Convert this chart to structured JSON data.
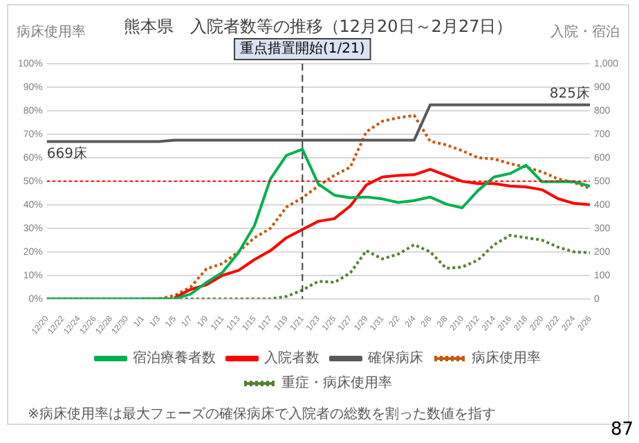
{
  "chart_data": {
    "type": "line",
    "title": "熊本県　入院者数等の推移（12月20日～2月27日）",
    "ylabel": "病床使用率",
    "y2label": "入院・宿泊",
    "categories": [
      "12/20",
      "12/22",
      "12/24",
      "12/26",
      "12/28",
      "12/30",
      "1/1",
      "1/3",
      "1/5",
      "1/7",
      "1/9",
      "1/11",
      "1/13",
      "1/15",
      "1/17",
      "1/19",
      "1/21",
      "1/23",
      "1/25",
      "1/27",
      "1/29",
      "1/31",
      "2/2",
      "2/4",
      "2/6",
      "2/8",
      "2/10",
      "2/12",
      "2/14",
      "2/16",
      "2/18",
      "2/20",
      "2/22",
      "2/24",
      "2/26"
    ],
    "series": [
      {
        "name": "入院者数",
        "color": "#ff0000",
        "axis": "y2",
        "line_style": "solid",
        "values": [
          null,
          null,
          null,
          null,
          null,
          null,
          null,
          null,
          5,
          40,
          60,
          100,
          121,
          167,
          205,
          260,
          295,
          330,
          341,
          395,
          484,
          518,
          525,
          528,
          551,
          525,
          500,
          490,
          490,
          480,
          476,
          464,
          426,
          406,
          400
        ]
      },
      {
        "name": "宿泊療養者数",
        "color": "#00b050",
        "axis": "y2",
        "line_style": "solid",
        "values": [
          0,
          0,
          0,
          0,
          0,
          0,
          0,
          0,
          0,
          20,
          70,
          113,
          197,
          312,
          510,
          610,
          636,
          488,
          441,
          430,
          433,
          425,
          410,
          418,
          433,
          403,
          387,
          461,
          518,
          533,
          568,
          498,
          498,
          498,
          479
        ]
      },
      {
        "name": "確保病床",
        "color": "#595959",
        "axis": "y2",
        "line_style": "solid",
        "value_labels": [
          "669床",
          null,
          null,
          null,
          null,
          null,
          null,
          null,
          null,
          null,
          null,
          null,
          null,
          null,
          null,
          null,
          null,
          null,
          null,
          null,
          null,
          null,
          null,
          null,
          null,
          null,
          null,
          null,
          null,
          null,
          null,
          null,
          null,
          null,
          "825床"
        ],
        "values": [
          669,
          669,
          669,
          669,
          669,
          669,
          669,
          669,
          675,
          675,
          675,
          675,
          675,
          675,
          675,
          675,
          675,
          675,
          675,
          675,
          675,
          675,
          675,
          675,
          825,
          825,
          825,
          825,
          825,
          825,
          825,
          825,
          825,
          825,
          825
        ]
      },
      {
        "name": "病床使用率",
        "color": "#c55a11",
        "line_style": "dotted",
        "values": [
          null,
          null,
          null,
          null,
          null,
          null,
          0,
          0,
          1.4,
          5,
          12.8,
          15,
          20,
          26,
          30,
          39,
          43,
          48,
          52.5,
          56,
          71,
          75.5,
          77,
          78,
          67,
          65.5,
          63,
          60,
          59.5,
          57.5,
          56,
          54,
          51,
          49.5,
          47
        ]
      },
      {
        "name": "重症・病床使用率",
        "color": "#548235",
        "line_style": "dotted",
        "values": [
          0,
          0,
          0,
          0,
          0,
          0,
          0,
          0,
          0,
          0,
          0,
          0,
          0,
          0,
          0,
          1,
          3.7,
          7.5,
          7,
          11,
          20.5,
          17,
          19,
          23,
          20,
          13,
          13.5,
          16.5,
          23,
          27,
          26,
          25,
          22,
          20,
          19.6
        ]
      }
    ],
    "ylim": [
      0,
      100
    ],
    "yticks": [
      {
        "value": 0,
        "label": "0%"
      },
      {
        "value": 10,
        "label": "10%"
      },
      {
        "value": 20,
        "label": "20%"
      },
      {
        "value": 30,
        "label": "30%"
      },
      {
        "value": 40,
        "label": "40%"
      },
      {
        "value": 50,
        "label": "50%"
      },
      {
        "value": 60,
        "label": "60%"
      },
      {
        "value": 70,
        "label": "70%"
      },
      {
        "value": 80,
        "label": "80%"
      },
      {
        "value": 90,
        "label": "90%"
      },
      {
        "value": 100,
        "label": "100%"
      }
    ],
    "y2lim": [
      0,
      1000
    ],
    "y2ticks": [
      0,
      100,
      200,
      300,
      400,
      500,
      600,
      700,
      800,
      900,
      {
        "value": 1000,
        "label": "1,000"
      }
    ],
    "grid": "y",
    "legend": "bottom",
    "marker": "none",
    "ref_lines": [
      {
        "axis": "y",
        "value": 50,
        "color": "#ff0000",
        "line_style": "dotted"
      },
      {
        "axis": "x",
        "value": "1/21",
        "label": "重点措置開始(1/21)",
        "color": "#404040",
        "line_style": "dashed"
      }
    ],
    "annotations": [
      "※病床使用率は最大フェーズの確保病床で入院者の総数を割った数値を指す",
      "87"
    ]
  }
}
